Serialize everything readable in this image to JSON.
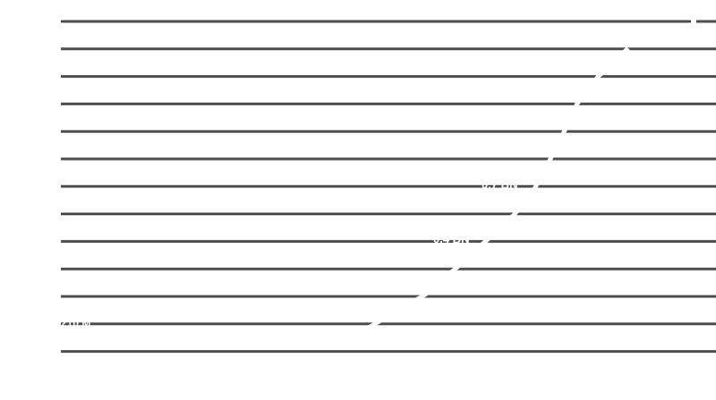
{
  "line_color": "#4d4d4d",
  "slash_color": "#ffffff",
  "line_count": 13,
  "text_fragments": [
    {
      "id": "frag-1",
      "text": "0.7 BN"
    },
    {
      "id": "frag-2",
      "text": "0.4 BN"
    },
    {
      "id": "frag-3",
      "text": "210 M"
    }
  ]
}
